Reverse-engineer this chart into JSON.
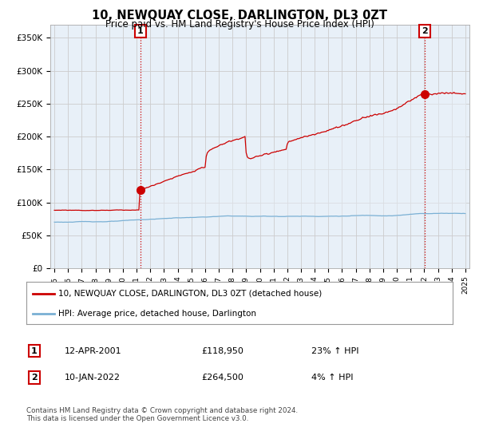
{
  "title": "10, NEWQUAY CLOSE, DARLINGTON, DL3 0ZT",
  "subtitle": "Price paid vs. HM Land Registry's House Price Index (HPI)",
  "ylim": [
    0,
    370000
  ],
  "yticks": [
    0,
    50000,
    100000,
    150000,
    200000,
    250000,
    300000,
    350000
  ],
  "ytick_labels": [
    "£0",
    "£50K",
    "£100K",
    "£150K",
    "£200K",
    "£250K",
    "£300K",
    "£350K"
  ],
  "red_line_color": "#cc0000",
  "blue_line_color": "#7ab0d4",
  "fill_color": "#ddeeff",
  "marker_color": "#cc0000",
  "sale1_date_num": 2001.28,
  "sale1_price": 118950,
  "sale1_label": "1",
  "sale2_date_num": 2022.03,
  "sale2_price": 264500,
  "sale2_label": "2",
  "legend_red": "10, NEWQUAY CLOSE, DARLINGTON, DL3 0ZT (detached house)",
  "legend_blue": "HPI: Average price, detached house, Darlington",
  "info1_label": "1",
  "info1_date": "12-APR-2001",
  "info1_price": "£118,950",
  "info1_hpi": "23% ↑ HPI",
  "info2_label": "2",
  "info2_date": "10-JAN-2022",
  "info2_price": "£264,500",
  "info2_hpi": "4% ↑ HPI",
  "footer": "Contains HM Land Registry data © Crown copyright and database right 2024.\nThis data is licensed under the Open Government Licence v3.0.",
  "grid_color": "#cccccc",
  "bg_color": "#ffffff",
  "plot_bg_color": "#e8f0f8",
  "vline_color": "#cc0000",
  "box_color": "#cc0000",
  "xlim_left": 1994.7,
  "xlim_right": 2025.3
}
